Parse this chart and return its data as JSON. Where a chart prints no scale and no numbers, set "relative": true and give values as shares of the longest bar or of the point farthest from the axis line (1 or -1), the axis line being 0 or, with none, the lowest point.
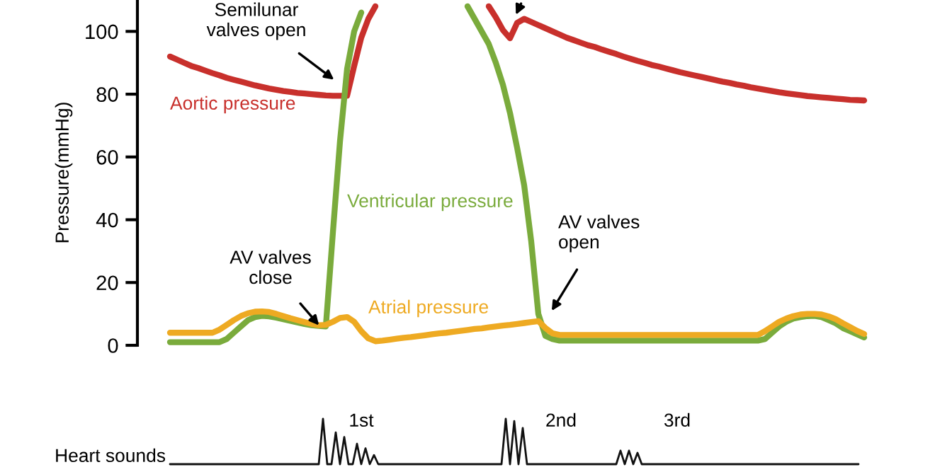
{
  "chart_data": [
    {
      "type": "line",
      "ylabel": "Pressure(mmHg)",
      "ylim": [
        0,
        110
      ],
      "yticks": [
        0,
        20,
        40,
        60,
        80,
        100
      ],
      "grid": false,
      "legend": false,
      "marker": "none",
      "line_style": "solid",
      "tick_labels": "y",
      "categories": [
        null,
        null,
        null,
        null,
        null,
        null,
        null,
        null,
        null,
        null,
        null,
        null,
        null,
        null,
        null,
        null,
        null,
        null,
        null,
        null,
        null,
        null,
        null,
        null,
        null,
        null,
        null,
        null,
        null,
        null,
        null,
        null,
        null,
        null,
        null,
        null,
        null,
        null,
        null,
        null,
        null,
        null,
        null,
        null,
        null,
        null,
        null,
        null,
        null,
        null,
        null,
        null,
        null,
        null,
        null,
        null,
        null,
        null,
        null,
        null,
        null,
        null,
        null,
        null,
        null,
        null,
        null,
        null,
        null,
        null,
        null,
        null,
        null,
        null,
        null,
        null,
        null,
        null,
        null,
        null,
        null,
        null,
        null,
        null,
        null,
        null,
        null,
        null,
        null,
        null,
        null,
        null,
        null,
        null,
        null,
        null,
        null,
        null,
        null
      ],
      "series": [
        {
          "name": "Aortic pressure",
          "color": "#c8302c",
          "values": [
            92,
            91,
            90,
            89,
            88.3,
            87.5,
            86.7,
            86,
            85.2,
            84.6,
            84,
            83.4,
            82.8,
            82.3,
            81.8,
            81.4,
            81,
            80.7,
            80.4,
            80.2,
            80,
            79.8,
            79.6,
            79.5,
            79.5,
            79.5,
            89,
            98,
            104,
            108,
            null,
            null,
            null,
            null,
            null,
            null,
            null,
            null,
            null,
            null,
            null,
            null,
            null,
            null,
            null,
            108,
            104.5,
            100.4,
            97.8,
            102.7,
            104,
            103,
            102,
            101,
            100,
            99,
            98,
            97.2,
            96.4,
            95.6,
            95,
            94.2,
            93.5,
            92.8,
            92,
            91.3,
            90.6,
            90,
            89.3,
            88.8,
            88.2,
            87.6,
            87,
            86.5,
            86,
            85.5,
            85,
            84.5,
            84,
            83.6,
            83.1,
            82.7,
            82.2,
            81.8,
            81.4,
            81,
            80.6,
            80.3,
            80,
            79.7,
            79.4,
            79.2,
            79,
            78.8,
            78.6,
            78.4,
            78.2,
            78.1,
            78
          ]
        },
        {
          "name": "Ventricular pressure",
          "color": "#7aab3c",
          "values": [
            1,
            1,
            1,
            1,
            1,
            1,
            1,
            1,
            2,
            4,
            6,
            8,
            9,
            9.4,
            9.2,
            8.8,
            8.3,
            7.8,
            7.3,
            6.8,
            6.4,
            6.2,
            6,
            36,
            65,
            88,
            100,
            106,
            null,
            null,
            null,
            null,
            null,
            null,
            null,
            null,
            null,
            null,
            null,
            null,
            null,
            null,
            108,
            104,
            100,
            96,
            90,
            83,
            74,
            63,
            51,
            33,
            10,
            3,
            2,
            1.5,
            1.5,
            1.5,
            1.5,
            1.5,
            1.5,
            1.5,
            1.5,
            1.5,
            1.5,
            1.5,
            1.5,
            1.5,
            1.5,
            1.5,
            1.5,
            1.5,
            1.5,
            1.5,
            1.5,
            1.5,
            1.5,
            1.5,
            1.5,
            1.5,
            1.5,
            1.5,
            1.5,
            1.5,
            2,
            4,
            6,
            7.5,
            8.5,
            9,
            9.3,
            9.4,
            9,
            8,
            7,
            5.5,
            4.5,
            3.5,
            2.5
          ]
        },
        {
          "name": "Atrial pressure",
          "color": "#eeaa22",
          "values": [
            4,
            4,
            4,
            4,
            4,
            4,
            4,
            5,
            6.5,
            8,
            9.3,
            10.2,
            10.7,
            10.8,
            10.6,
            10,
            9.3,
            8.6,
            8,
            7.4,
            6.8,
            6.4,
            6.5,
            7.5,
            8.7,
            9,
            7.5,
            4.5,
            2.2,
            1.3,
            1.5,
            1.8,
            2.1,
            2.4,
            2.6,
            2.9,
            3.2,
            3.5,
            3.8,
            4,
            4.3,
            4.6,
            4.9,
            5.2,
            5.4,
            5.7,
            6,
            6.3,
            6.5,
            6.8,
            7.1,
            7.4,
            7.7,
            5.5,
            3.8,
            3.3,
            3.3,
            3.3,
            3.3,
            3.3,
            3.3,
            3.3,
            3.3,
            3.3,
            3.3,
            3.3,
            3.3,
            3.3,
            3.3,
            3.3,
            3.3,
            3.3,
            3.3,
            3.3,
            3.3,
            3.3,
            3.3,
            3.3,
            3.3,
            3.3,
            3.3,
            3.3,
            3.3,
            3.3,
            4.5,
            6,
            7.5,
            8.5,
            9.3,
            9.8,
            10,
            10,
            9.8,
            9.2,
            8.3,
            7,
            5.8,
            4.6,
            3.6
          ]
        }
      ],
      "annotations": [
        "Semilunar\nvalves open",
        "AV valves\nclose",
        "AV valves\nopen"
      ]
    },
    {
      "type": "line",
      "relative": true,
      "ylabel": "Heart sounds",
      "tick_labels": false,
      "legend": false,
      "grid": false,
      "categories": [
        null,
        null,
        null,
        null,
        null,
        null,
        null,
        null,
        null,
        null,
        null,
        null,
        null,
        null,
        null,
        null,
        null,
        null,
        null,
        null,
        null,
        null,
        null,
        null,
        null,
        null,
        null,
        null,
        null,
        null,
        null,
        null,
        null,
        null,
        null,
        null,
        null,
        null,
        null,
        null,
        null,
        null,
        null,
        null,
        null,
        null,
        null,
        null,
        null,
        null,
        null,
        null,
        null,
        null,
        null,
        null,
        null,
        null,
        null,
        null,
        null,
        null,
        null,
        null,
        null,
        null,
        null,
        null,
        null,
        null,
        null,
        null,
        null,
        null,
        null,
        null,
        null,
        null,
        null,
        null,
        null,
        null,
        null,
        null,
        null,
        null,
        null,
        null,
        null,
        null,
        null,
        null,
        null,
        null,
        null,
        null,
        null,
        null,
        null,
        null,
        null,
        null,
        null,
        null,
        null,
        null,
        null,
        null,
        null,
        null,
        null,
        null,
        null,
        null,
        null,
        null,
        null,
        null,
        null,
        null,
        null,
        null,
        null,
        null,
        null,
        null,
        null,
        null,
        null,
        null,
        null,
        null,
        null,
        null,
        null,
        null,
        null,
        null,
        null,
        null,
        null,
        null,
        null,
        null,
        null,
        null,
        null,
        null,
        null,
        null,
        null,
        null,
        null,
        null,
        null,
        null,
        null,
        null,
        null,
        null,
        null,
        null,
        null
      ],
      "series": [
        {
          "color": "#111111",
          "values": [
            0,
            0,
            0,
            0,
            0,
            0,
            0,
            0,
            0,
            0,
            0,
            0,
            0,
            0,
            0,
            0,
            0,
            0,
            0,
            0,
            0,
            0,
            0,
            0,
            0,
            0,
            0,
            0,
            0,
            0,
            0,
            0,
            0,
            0,
            0,
            0,
            1,
            0,
            0,
            0.7,
            0,
            0.6,
            0,
            0,
            0.45,
            0,
            0.35,
            0,
            0.2,
            0,
            0,
            0,
            0,
            0,
            0,
            0,
            0,
            0,
            0,
            0,
            0,
            0,
            0,
            0,
            0,
            0,
            0,
            0,
            0,
            0,
            0,
            0,
            0,
            0,
            0,
            0,
            0,
            0,
            0,
            1,
            0,
            0.95,
            0,
            0.8,
            0,
            0,
            0,
            0,
            0,
            0,
            0,
            0,
            0,
            0,
            0,
            0,
            0,
            0,
            0,
            0,
            0,
            0,
            0,
            0,
            0,
            0,
            0.3,
            0,
            0.3,
            0,
            0.25,
            0,
            0,
            0,
            0,
            0,
            0,
            0,
            0,
            0,
            0,
            0,
            0,
            0,
            0,
            0,
            0,
            0,
            0,
            0,
            0,
            0,
            0,
            0,
            0,
            0,
            0,
            0,
            0,
            0,
            0,
            0,
            0,
            0,
            0,
            0,
            0,
            0,
            0,
            0,
            0,
            0,
            0,
            0,
            0,
            0,
            0,
            0,
            0,
            0,
            0,
            0,
            0
          ]
        }
      ],
      "annotations": [
        "1st",
        "2nd",
        "3rd"
      ]
    }
  ]
}
